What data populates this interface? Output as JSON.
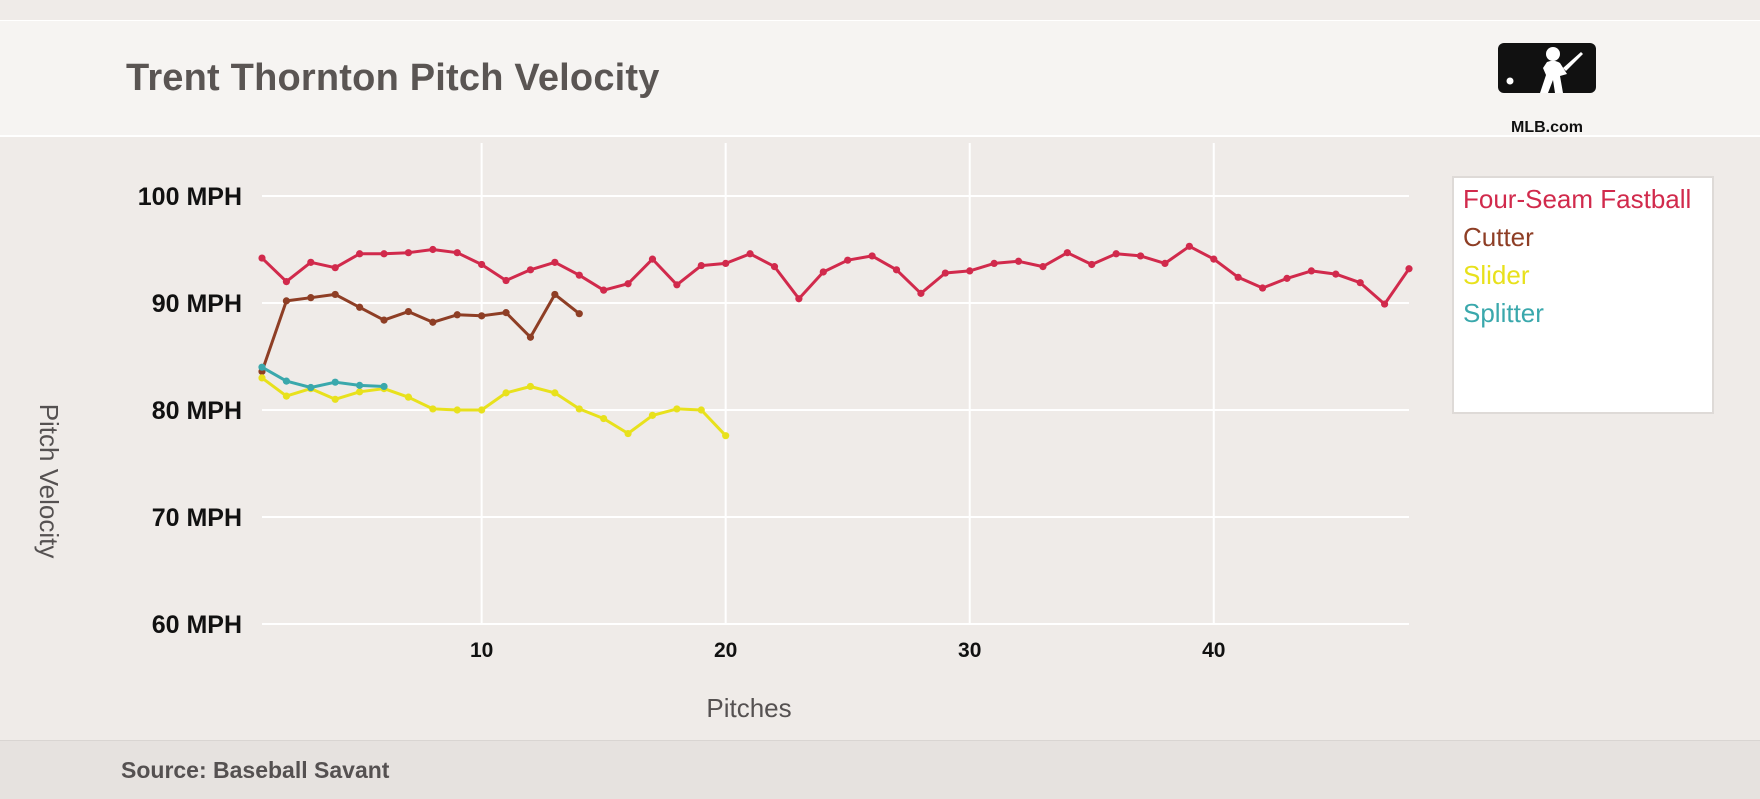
{
  "header": {
    "title": "Trent Thornton Pitch Velocity"
  },
  "logo": {
    "text": "MLB.com",
    "icon": "batter-silhouette-icon"
  },
  "footer": {
    "source": "Source: Baseball Savant"
  },
  "chart_data": {
    "type": "line",
    "title": "Trent Thornton Pitch Velocity",
    "xlabel": "Pitches",
    "ylabel": "Pitch Velocity",
    "xlim": [
      1,
      48
    ],
    "ylim": [
      60,
      105
    ],
    "xticks": [
      10,
      20,
      30,
      40
    ],
    "yticks": [
      60,
      70,
      80,
      90,
      100
    ],
    "ytick_labels": [
      "60 MPH",
      "70 MPH",
      "80 MPH",
      "90 MPH",
      "100 MPH"
    ],
    "grid": true,
    "legend_position": "right",
    "series": [
      {
        "name": "Four-Seam Fastball",
        "color": "#d12a4c",
        "x": [
          1,
          2,
          3,
          4,
          5,
          6,
          7,
          8,
          9,
          10,
          11,
          12,
          13,
          14,
          15,
          16,
          17,
          18,
          19,
          20,
          21,
          22,
          23,
          24,
          25,
          26,
          27,
          28,
          29,
          30,
          31,
          32,
          33,
          34,
          35,
          36,
          37,
          38,
          39,
          40,
          41,
          42,
          43,
          44,
          45,
          46,
          47,
          48
        ],
        "values": [
          94.2,
          92.0,
          93.8,
          93.3,
          94.6,
          94.6,
          94.7,
          95.0,
          94.7,
          93.6,
          92.1,
          93.1,
          93.8,
          92.6,
          91.2,
          91.8,
          94.1,
          91.7,
          93.5,
          93.7,
          94.6,
          93.4,
          90.4,
          92.9,
          94.0,
          94.4,
          93.1,
          90.9,
          92.8,
          93.0,
          93.7,
          93.9,
          93.4,
          94.7,
          93.6,
          94.6,
          94.4,
          93.7,
          95.3,
          94.1,
          92.4,
          91.4,
          92.3,
          93.0,
          92.7,
          91.9,
          89.9,
          93.2
        ]
      },
      {
        "name": "Cutter",
        "color": "#8e3e25",
        "x": [
          1,
          2,
          3,
          4,
          5,
          6,
          7,
          8,
          9,
          10,
          11,
          12,
          13,
          14
        ],
        "values": [
          83.6,
          90.2,
          90.5,
          90.8,
          89.6,
          88.4,
          89.2,
          88.2,
          88.9,
          88.8,
          89.1,
          86.8,
          90.8,
          89.0
        ]
      },
      {
        "name": "Slider",
        "color": "#e8e11c",
        "x": [
          1,
          2,
          3,
          4,
          5,
          6,
          7,
          8,
          9,
          10,
          11,
          12,
          13,
          14,
          15,
          16,
          17,
          18,
          19,
          20
        ],
        "values": [
          83.0,
          81.3,
          82.0,
          81.0,
          81.7,
          82.0,
          81.2,
          80.1,
          80.0,
          80.0,
          81.6,
          82.2,
          81.6,
          80.1,
          79.2,
          77.8,
          79.5,
          80.1,
          80.0,
          77.6
        ]
      },
      {
        "name": "Splitter",
        "color": "#3aa8ac",
        "x": [
          1,
          2,
          3,
          4,
          5,
          6
        ],
        "values": [
          84.0,
          82.7,
          82.1,
          82.6,
          82.3,
          82.2
        ]
      }
    ]
  }
}
